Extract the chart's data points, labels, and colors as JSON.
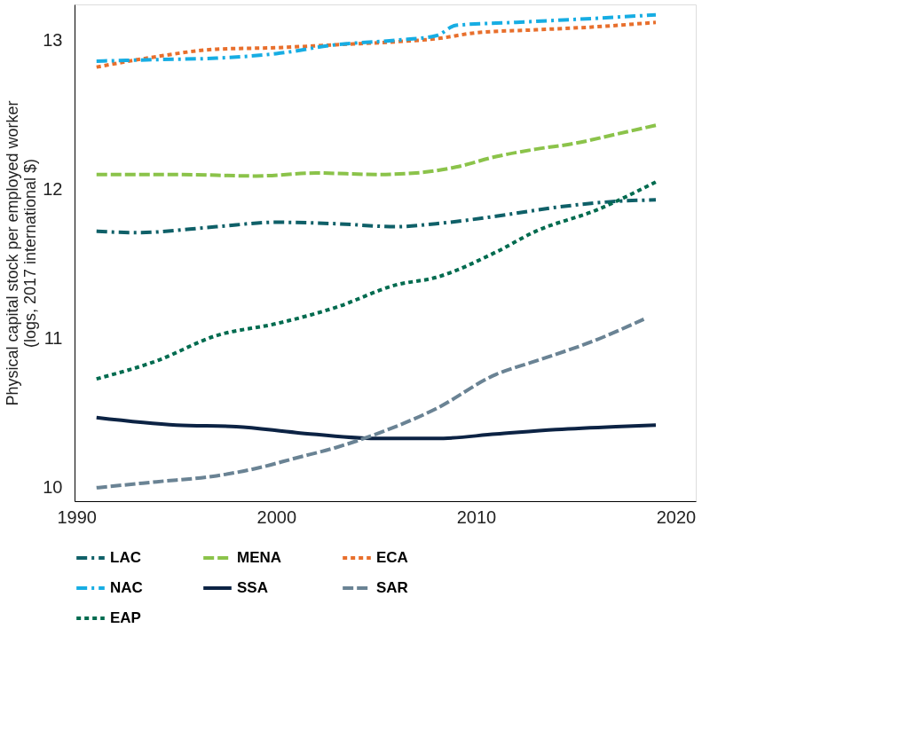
{
  "chart_data": {
    "type": "line",
    "ylabel": "Physical capital stock per employed worker\n(logs, 2017 international $)",
    "xlim": [
      1989.9,
      2021
    ],
    "xticks": [
      1990,
      2000,
      2010,
      2020
    ],
    "ylim": [
      9.91,
      13.24
    ],
    "yticks": [
      10,
      11,
      12,
      13
    ],
    "grid": false,
    "legend": "bottom",
    "series": [
      {
        "name": "LAC",
        "color": "#0f6068",
        "line_style": "dashdot",
        "x": [
          1991,
          1993,
          1997,
          2000,
          2003,
          2006,
          2008,
          2011,
          2014,
          2017,
          2019
        ],
        "values": [
          11.72,
          11.71,
          11.75,
          11.78,
          11.77,
          11.75,
          11.77,
          11.82,
          11.88,
          11.92,
          11.93
        ]
      },
      {
        "name": "MENA",
        "color": "#8bc34a",
        "line_style": "dashed",
        "x": [
          1991,
          1995,
          1999,
          2002,
          2005,
          2007,
          2009,
          2011,
          2013,
          2015,
          2017,
          2019
        ],
        "values": [
          12.1,
          12.1,
          12.09,
          12.11,
          12.1,
          12.11,
          12.15,
          12.22,
          12.27,
          12.31,
          12.37,
          12.43
        ]
      },
      {
        "name": "ECA",
        "color": "#e86f2c",
        "line_style": "dotted",
        "x": [
          1991,
          1994,
          1997,
          2000,
          2003,
          2006,
          2008,
          2010,
          2013,
          2016,
          2019
        ],
        "values": [
          12.82,
          12.89,
          12.94,
          12.95,
          12.97,
          12.99,
          13.01,
          13.05,
          13.07,
          13.09,
          13.12
        ]
      },
      {
        "name": "NAC",
        "color": "#17ade3",
        "line_style": "dashdot",
        "x": [
          1991,
          1994,
          1997,
          2000,
          2003,
          2006,
          2008,
          2009,
          2012,
          2015,
          2019
        ],
        "values": [
          12.86,
          12.87,
          12.88,
          12.91,
          12.97,
          13.0,
          13.03,
          13.1,
          13.12,
          13.14,
          13.17
        ]
      },
      {
        "name": "SSA",
        "color": "#0c2344",
        "line_style": "solid",
        "x": [
          1991,
          1995,
          1998,
          2001,
          2005,
          2008,
          2011,
          2014,
          2017,
          2019
        ],
        "values": [
          10.47,
          10.42,
          10.41,
          10.37,
          10.33,
          10.33,
          10.36,
          10.39,
          10.41,
          10.42
        ]
      },
      {
        "name": "SAR",
        "color": "#6a8394",
        "line_style": "dashed",
        "x": [
          1991,
          1994,
          1997,
          1999,
          2001,
          2003,
          2005,
          2008,
          2011,
          2013,
          2016,
          2018.4
        ],
        "values": [
          10.0,
          10.04,
          10.08,
          10.13,
          10.2,
          10.27,
          10.36,
          10.53,
          10.76,
          10.85,
          10.99,
          11.13
        ]
      },
      {
        "name": "EAP",
        "color": "#006b4f",
        "line_style": "dotted",
        "x": [
          1991,
          1994,
          1997,
          2000,
          2003,
          2006,
          2008,
          2011,
          2013,
          2016,
          2019
        ],
        "values": [
          10.73,
          10.85,
          11.02,
          11.1,
          11.21,
          11.36,
          11.41,
          11.58,
          11.72,
          11.86,
          12.05
        ]
      }
    ]
  }
}
